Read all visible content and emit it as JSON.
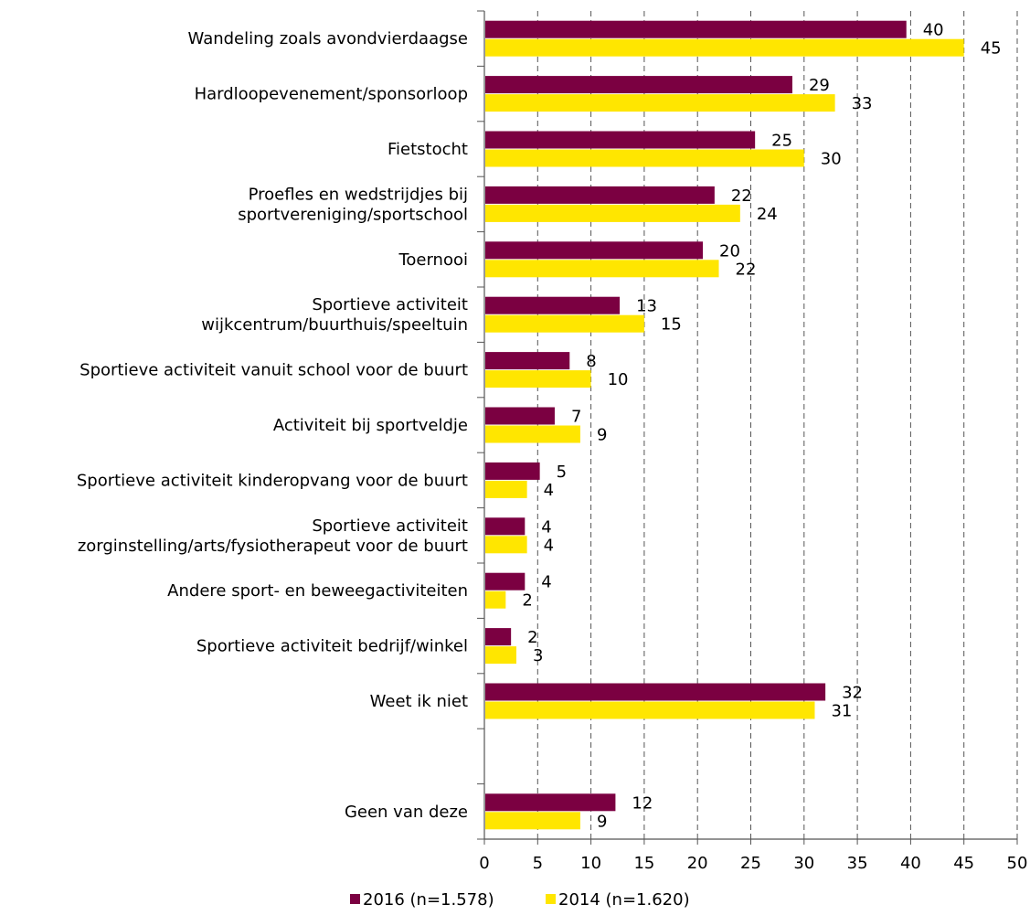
{
  "chart_data": {
    "type": "bar",
    "orientation": "horizontal",
    "categories": [
      [
        "Wandeling zoals avondvierdaagse"
      ],
      [
        "Hardloopevenement/sponsorloop"
      ],
      [
        "Fietstocht"
      ],
      [
        "Proefles en wedstrijdjes bij",
        "sportvereniging/sportschool"
      ],
      [
        "Toernooi"
      ],
      [
        "Sportieve activiteit",
        "wijkcentrum/buurthuis/speeltuin"
      ],
      [
        "Sportieve activiteit vanuit school voor de buurt"
      ],
      [
        "Activiteit bij sportveldje"
      ],
      [
        "Sportieve activiteit kinderopvang voor de buurt"
      ],
      [
        "Sportieve activiteit",
        "zorginstelling/arts/fysiotherapeut voor de buurt"
      ],
      [
        "Andere sport- en beweegactiviteiten"
      ],
      [
        "Sportieve activiteit bedrijf/winkel"
      ],
      [
        "Weet ik niet"
      ],
      [],
      [
        "Geen van deze"
      ]
    ],
    "series": [
      {
        "name": "2016 (n=1.578)",
        "color": "#7b0041",
        "values": [
          39.6,
          28.9,
          25.4,
          21.6,
          20.5,
          12.7,
          8.0,
          6.6,
          5.2,
          3.8,
          3.8,
          2.5,
          32.0,
          null,
          12.3
        ],
        "labels": [
          "40",
          "29",
          "25",
          "22",
          "20",
          "13",
          "8",
          "7",
          "5",
          "4",
          "4",
          "2",
          "32",
          "",
          "12"
        ]
      },
      {
        "name": "2014 (n=1.620)",
        "color": "#ffe600",
        "values": [
          45.0,
          32.9,
          30.0,
          24.0,
          22.0,
          15.0,
          10.0,
          9.0,
          4.0,
          4.0,
          2.0,
          3.0,
          31.0,
          null,
          9.0
        ],
        "labels": [
          "45",
          "33",
          "30",
          "24",
          "22",
          "15",
          "10",
          "9",
          "4",
          "4",
          "2",
          "3",
          "31",
          "",
          "9"
        ]
      }
    ],
    "x_ticks": [
      "0",
      "5",
      "10",
      "15",
      "20",
      "25",
      "30",
      "35",
      "40",
      "45",
      "50"
    ],
    "xlim": [
      0,
      50
    ],
    "title": "",
    "xlabel": "",
    "ylabel": "",
    "grid": "vertical dashed",
    "legend_position": "bottom"
  }
}
